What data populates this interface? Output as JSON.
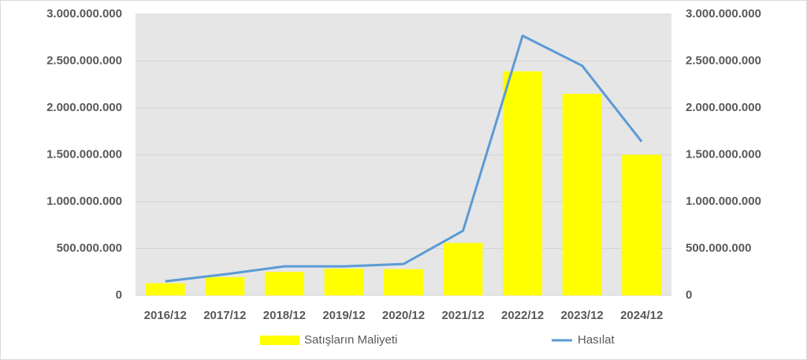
{
  "chart_data": {
    "type": "combo",
    "categories": [
      "2016/12",
      "2017/12",
      "2018/12",
      "2019/12",
      "2020/12",
      "2021/12",
      "2022/12",
      "2023/12",
      "2024/12"
    ],
    "series": [
      {
        "name": "Satışların Maliyeti",
        "type": "bar",
        "color": "#ffff00",
        "values": [
          130000000,
          195000000,
          250000000,
          285000000,
          280000000,
          560000000,
          2390000000,
          2150000000,
          1500000000
        ]
      },
      {
        "name": "Hasılat",
        "type": "line",
        "axis": "y2",
        "color": "#5b9bd5",
        "values": [
          150000000,
          225000000,
          310000000,
          310000000,
          335000000,
          690000000,
          2770000000,
          2450000000,
          1640000000
        ]
      }
    ],
    "ylim": [
      0,
      3000000000
    ],
    "yticks": [
      0,
      {
        "value": 500000000,
        "label": "500.000.000"
      },
      {
        "value": 1000000000,
        "label": "1.000.000.000"
      },
      {
        "value": 1500000000,
        "label": "1.500.000.000"
      },
      {
        "value": 2000000000,
        "label": "2.000.000.000"
      },
      {
        "value": 2500000000,
        "label": "2.500.000.000"
      },
      {
        "value": 3000000000,
        "label": "3.000.000.000"
      }
    ],
    "y2lim": [
      0,
      3000000000
    ],
    "y2ticks": [
      0,
      {
        "value": 500000000,
        "label": "500.000.000"
      },
      {
        "value": 1000000000,
        "label": "1.000.000.000"
      },
      {
        "value": 1500000000,
        "label": "1.500.000.000"
      },
      {
        "value": 2000000000,
        "label": "2.000.000.000"
      },
      {
        "value": 2500000000,
        "label": "2.500.000.000"
      },
      {
        "value": 3000000000,
        "label": "3.000.000.000"
      }
    ],
    "grid": true,
    "plot_background": "#e6e6e6"
  }
}
